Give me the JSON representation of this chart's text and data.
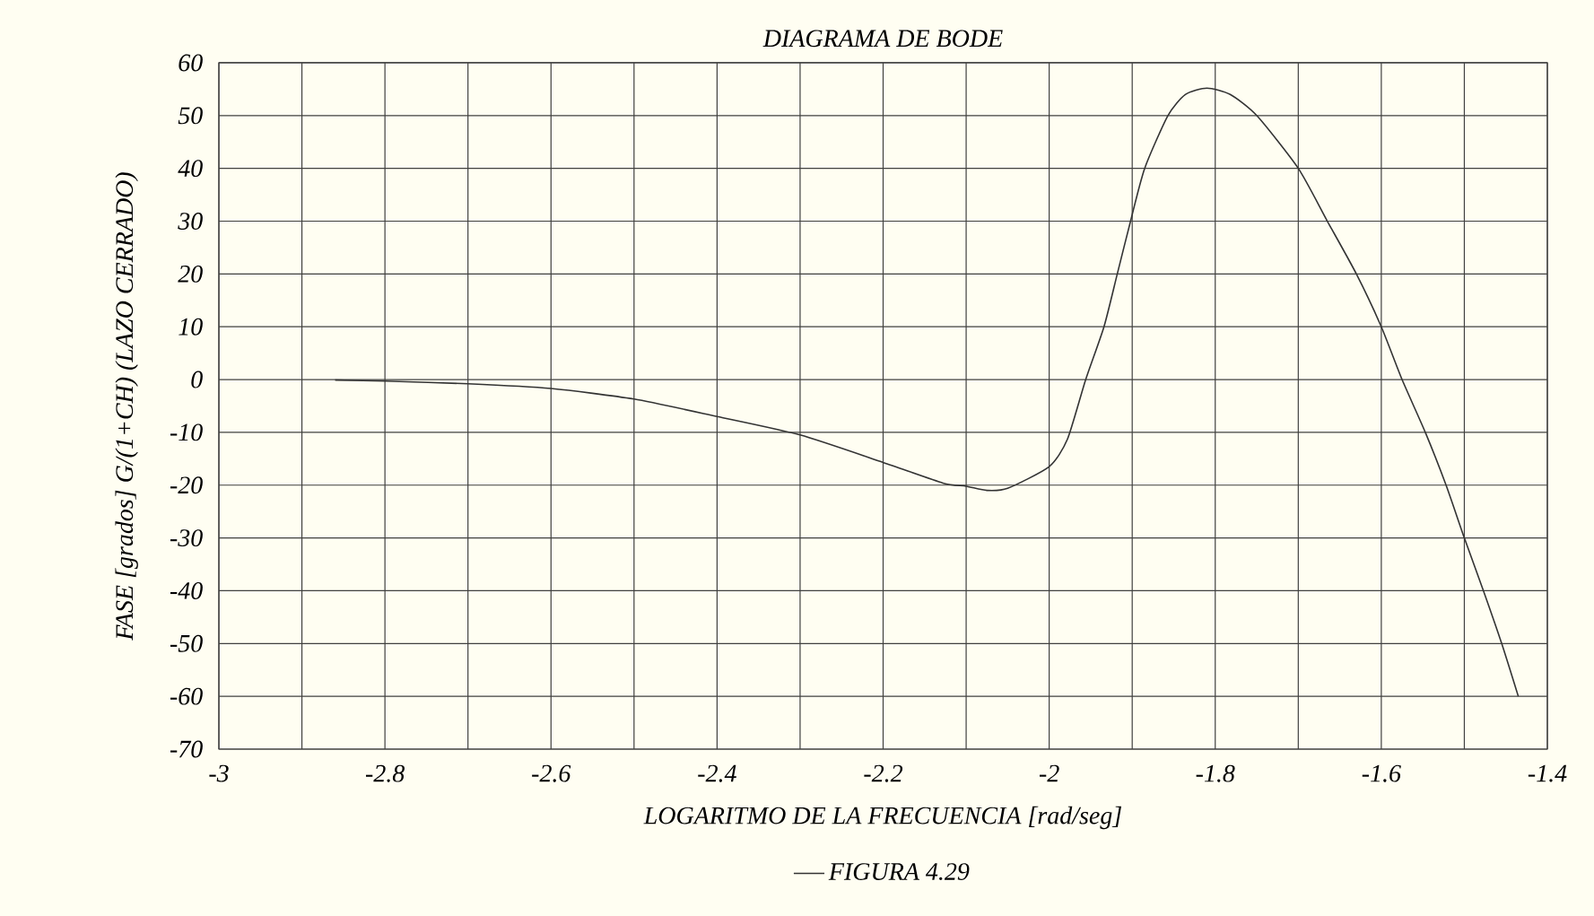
{
  "chart_data": {
    "type": "line",
    "title": "DIAGRAMA DE BODE",
    "xlabel": "LOGARITMO DE LA FRECUENCIA [rad/seg]",
    "ylabel": "FASE [grados]  G/(1+CH)  (LAZO CERRADO)",
    "xlim": [
      -3,
      -1.4
    ],
    "ylim": [
      -70,
      60
    ],
    "xticks": [
      -3,
      {
        "value": -2.9,
        "label": null
      },
      -2.8,
      {
        "value": -2.7,
        "label": null
      },
      -2.6,
      {
        "value": -2.5,
        "label": null
      },
      -2.4,
      {
        "value": -2.3,
        "label": null
      },
      -2.2,
      {
        "value": -2.1,
        "label": null
      },
      -2,
      {
        "value": -1.9,
        "label": null
      },
      -1.8,
      {
        "value": -1.7,
        "label": null
      },
      -1.6,
      {
        "value": -1.5,
        "label": null
      },
      -1.4
    ],
    "yticks": [
      -70,
      -60,
      -50,
      -40,
      -30,
      -20,
      -10,
      0,
      10,
      20,
      30,
      40,
      50,
      60
    ],
    "grid": true,
    "legend": "bottom",
    "marker": "none",
    "line_style": "solid",
    "series": [
      {
        "name": "FIGURA 4.29",
        "color": "#333333",
        "x": [
          -2.86,
          -2.8,
          -2.7,
          -2.6,
          -2.5,
          -2.4,
          -2.3,
          -2.2,
          -2.128,
          -2.1,
          -2.075,
          -2.05,
          -2.0,
          -1.978,
          -1.956,
          -1.934,
          -1.918,
          -1.902,
          -1.885,
          -1.857,
          -1.836,
          -1.81,
          -1.782,
          -1.75,
          -1.7,
          -1.665,
          -1.63,
          -1.6,
          -1.575,
          -1.547,
          -1.522,
          -1.5,
          -1.477,
          -1.455,
          -1.435
        ],
        "values": [
          -0.1,
          -0.3,
          -0.8,
          -1.7,
          -3.7,
          -7,
          -10.5,
          -15.7,
          -19.6,
          -20.2,
          -21,
          -20.6,
          -16.5,
          -11.3,
          0,
          10,
          20,
          30,
          40,
          50,
          54,
          55.2,
          54,
          50,
          40,
          30,
          20,
          10,
          0,
          -10,
          -20,
          -30,
          -40,
          -50,
          -60
        ]
      }
    ]
  }
}
